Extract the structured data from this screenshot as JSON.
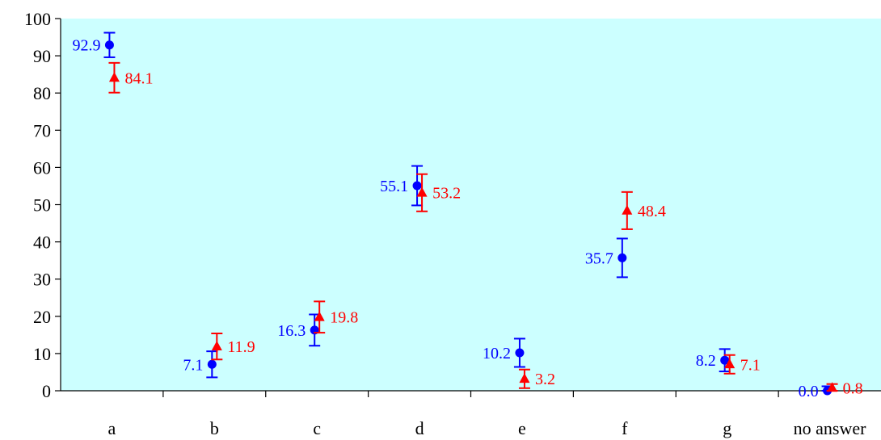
{
  "chart_data": {
    "type": "scatter",
    "title": "",
    "xlabel": "",
    "ylabel": "",
    "ylim": [
      0,
      100
    ],
    "yticks": [
      0,
      10,
      20,
      30,
      40,
      50,
      60,
      70,
      80,
      90,
      100
    ],
    "ytick_labels": [
      "0",
      "10",
      "20",
      "30",
      "40",
      "50",
      "60",
      "70",
      "80",
      "90",
      "100"
    ],
    "categories": [
      "a",
      "b",
      "c",
      "d",
      "e",
      "f",
      "g",
      "no answer"
    ],
    "grid": false,
    "legend": "none",
    "plot_background": "#ccffff",
    "series": [
      {
        "marker": "circle",
        "color": "#0000ff",
        "label_side": "left",
        "values": [
          92.9,
          7.1,
          16.3,
          55.1,
          10.2,
          35.7,
          8.2,
          0.0
        ],
        "labels": [
          "92.9",
          "7.1",
          "16.3",
          "55.1",
          "10.2",
          "35.7",
          "8.2",
          "0.0"
        ],
        "error": [
          3.3,
          3.5,
          4.2,
          5.3,
          3.8,
          5.2,
          3.0,
          1.2
        ]
      },
      {
        "marker": "triangle",
        "color": "#ff0000",
        "label_side": "right",
        "values": [
          84.1,
          11.9,
          19.8,
          53.2,
          3.2,
          48.4,
          7.1,
          0.8
        ],
        "labels": [
          "84.1",
          "11.9",
          "19.8",
          "53.2",
          "3.2",
          "48.4",
          "7.1",
          "0.8"
        ],
        "error": [
          4.0,
          3.5,
          4.2,
          5.0,
          2.5,
          5.0,
          2.5,
          1.0
        ]
      }
    ]
  }
}
